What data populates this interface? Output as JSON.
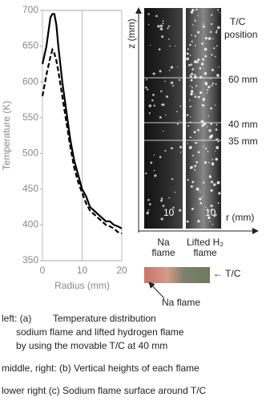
{
  "chart_data": {
    "type": "line",
    "xlabel": "Radius (mm)",
    "ylabel": "Temperature (K)",
    "x": [
      0,
      1,
      2,
      2.5,
      3,
      3.5,
      4,
      5,
      6,
      7,
      8,
      9,
      10,
      11,
      12,
      13,
      14,
      15,
      16,
      17,
      18,
      19,
      20
    ],
    "series": [
      {
        "color": "#000000",
        "dash": false,
        "values": [
          625,
          650,
          690,
          695,
          695,
          680,
          650,
          600,
          560,
          520,
          490,
          470,
          450,
          440,
          425,
          420,
          415,
          410,
          405,
          405,
          400,
          398,
          395
        ]
      },
      {
        "color": "#000000",
        "dash": true,
        "values": [
          580,
          610,
          635,
          645,
          640,
          630,
          615,
          580,
          545,
          510,
          480,
          460,
          445,
          430,
          420,
          415,
          410,
          405,
          400,
          398,
          395,
          390,
          388
        ]
      }
    ],
    "xlim": [
      0,
      20
    ],
    "xticks": [
      0,
      10,
      20
    ],
    "ylim": [
      350,
      700
    ],
    "yticks": [
      350,
      400,
      450,
      500,
      550,
      600,
      650,
      700
    ],
    "grid": true
  },
  "panel": {
    "z_axis": "z (mm)",
    "r_axis": "r (mm)",
    "tc_position": [
      "T/C",
      "position"
    ],
    "heights": [
      "60 mm",
      "40 mm",
      "35 mm"
    ],
    "scale_left": "10",
    "scale_right": "10",
    "na_label": [
      "Na",
      "flame"
    ],
    "h2_label": [
      "Lifted H₂",
      "flame"
    ],
    "tc_arrow": "← T/C",
    "na_flame_arrow": "Na flame"
  },
  "caption": {
    "a_prefix": "left: (a)",
    "a_lines": [
      "Temperature distribution",
      "sodium flame and lifted hydrogen flame",
      "by using the movable T/C at 40 mm"
    ],
    "b": "middle, right: (b)  Vertical heights of each flame",
    "c": "lower right (c)  Sodium flame surface around T/C"
  }
}
